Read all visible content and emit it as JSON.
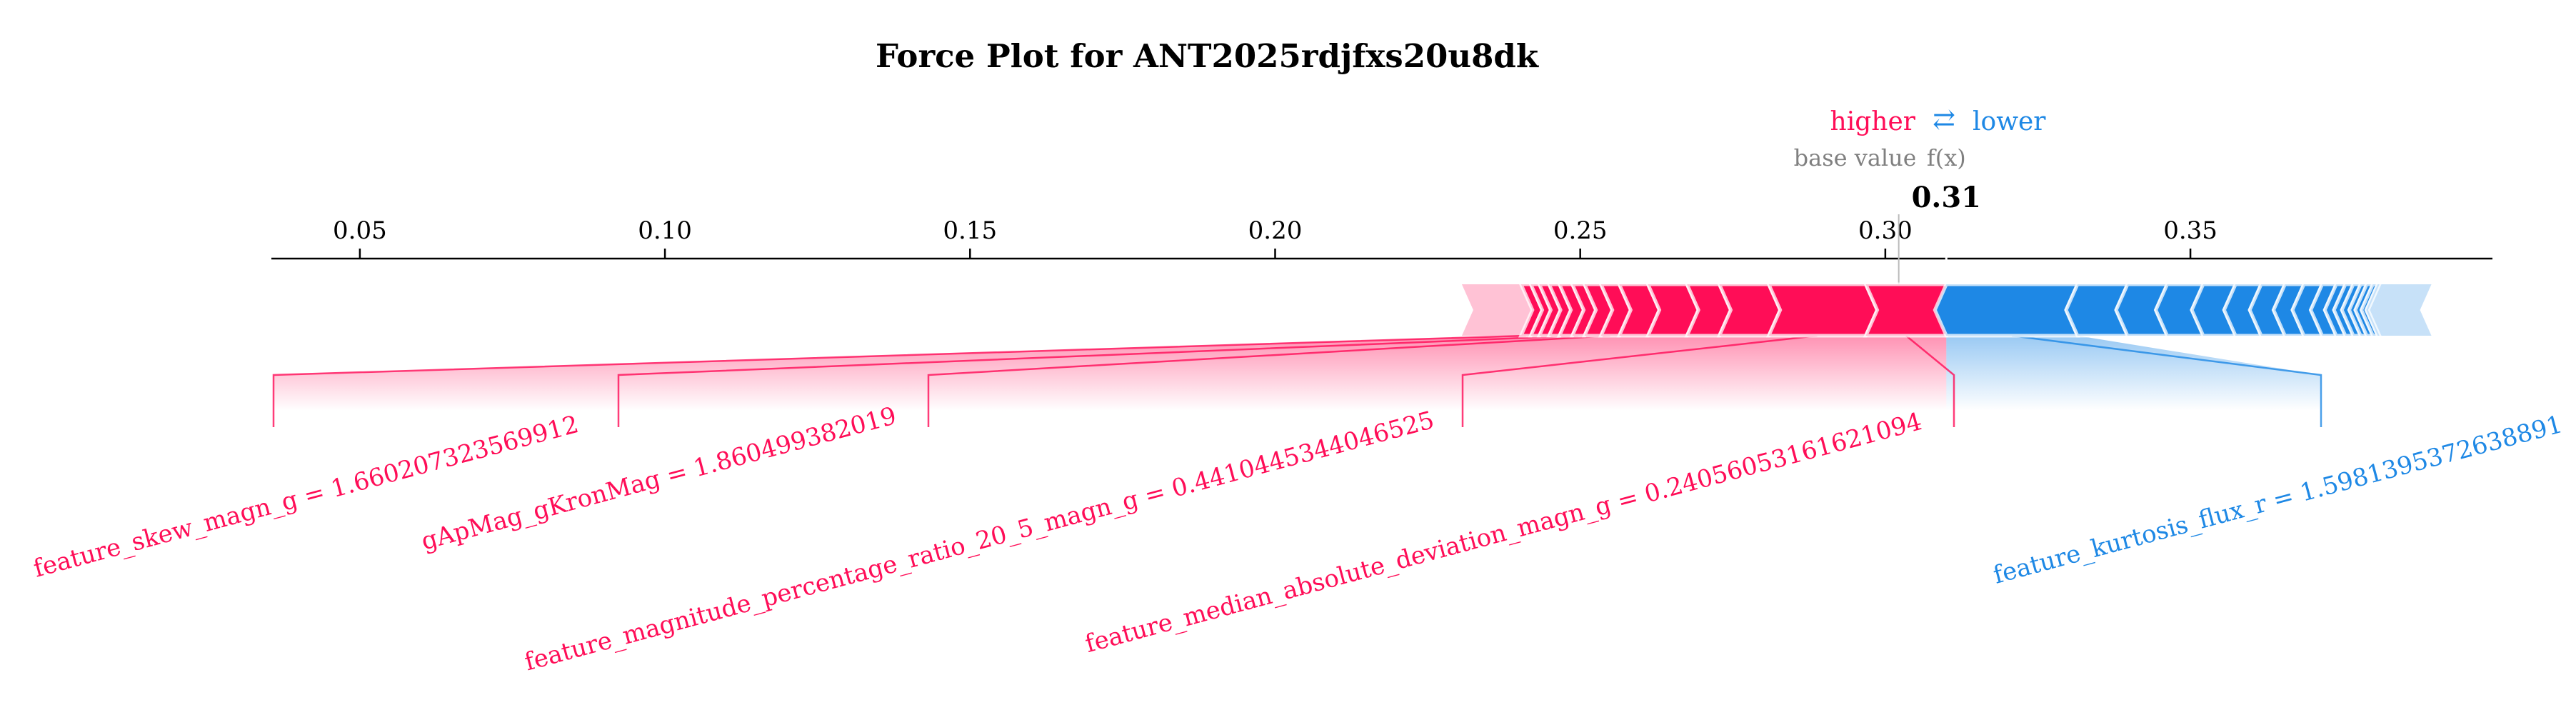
{
  "chart_data": {
    "type": "force",
    "title": "Force Plot for ANT2025rdjfxs20u8dk",
    "legend": {
      "higher_label": "higher",
      "arrow_symbol": "⇄",
      "lower_label": "lower",
      "higher_color": "#ff0d57",
      "lower_color": "#1e88e5"
    },
    "base_value_label": "base value",
    "fx_label": "f(x)",
    "fx_value": 0.31,
    "fx_text": "0.31",
    "base_value": 0.3022,
    "xlim": [
      0.0355,
      0.3995
    ],
    "ticks": [
      {
        "value": 0.05,
        "label": "0.05"
      },
      {
        "value": 0.1,
        "label": "0.10"
      },
      {
        "value": 0.15,
        "label": "0.15"
      },
      {
        "value": 0.2,
        "label": "0.20"
      },
      {
        "value": 0.25,
        "label": "0.25"
      },
      {
        "value": 0.3,
        "label": "0.30"
      },
      {
        "value": 0.35,
        "label": "0.35"
      }
    ],
    "positive_segments": [
      0.2306,
      0.2403,
      0.2419,
      0.2433,
      0.2449,
      0.2466,
      0.2487,
      0.2507,
      0.2534,
      0.2564,
      0.2611,
      0.2675,
      0.2728,
      0.2809,
      0.2968,
      0.31
    ],
    "negative_segments": [
      0.31,
      0.3315,
      0.3397,
      0.3462,
      0.3521,
      0.3574,
      0.3616,
      0.3655,
      0.3686,
      0.3716,
      0.3739,
      0.3754,
      0.3767,
      0.3779,
      0.3789,
      0.3799,
      0.3807,
      0.3813,
      0.3819,
      0.3895
    ],
    "positive_features": [
      {
        "label": "feature_skew_magn_g = 1.660207323569912",
        "segment": [
          0.2403,
          0.2419
        ]
      },
      {
        "label": "gApMag_gKronMag = 1.860499382019",
        "segment": [
          0.2487,
          0.2507
        ]
      },
      {
        "label": "feature_magnitude_percentage_ratio_20_5_magn_g = 0.4410445344046525",
        "segment": [
          0.2534,
          0.2564
        ]
      },
      {
        "label": "feature_median_absolute_deviation_magn_g = 0.24056053161621094",
        "segment": [
          0.2809,
          0.2968
        ]
      },
      {
        "label": "",
        "segment": [
          0.2968,
          0.31
        ]
      }
    ],
    "negative_features": [
      {
        "label": "feature_kurtosis_flux_r = 1.5981395372638891",
        "segment": [
          0.31,
          0.3315
        ]
      }
    ]
  }
}
